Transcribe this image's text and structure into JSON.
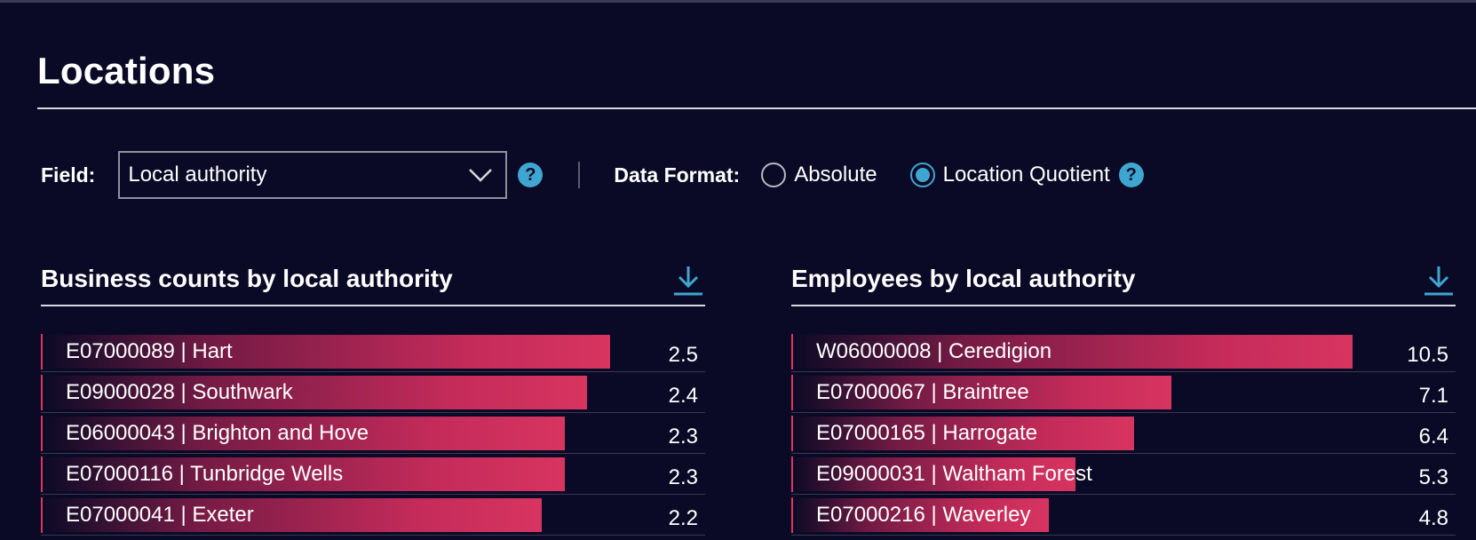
{
  "page": {
    "title": "Locations"
  },
  "controls": {
    "field_label": "Field:",
    "field_value": "Local authority",
    "help": "?",
    "format_label": "Data Format:",
    "options": [
      {
        "label": "Absolute",
        "selected": false
      },
      {
        "label": "Location Quotient",
        "selected": true
      }
    ]
  },
  "colors": {
    "background": "#0b0a26",
    "bar": "#d83460",
    "accent": "#3fa6d2"
  },
  "chart_data": [
    {
      "type": "bar",
      "orientation": "horizontal",
      "title": "Business counts by local authority",
      "categories": [
        "E07000089 | Hart",
        "E09000028 | Southwark",
        "E06000043 | Brighton and Hove",
        "E07000116 | Tunbridge Wells",
        "E07000041 | Exeter"
      ],
      "values": [
        2.5,
        2.4,
        2.3,
        2.3,
        2.2
      ],
      "value_labels": [
        "2.5",
        "2.4",
        "2.3",
        "2.3",
        "2.2"
      ],
      "xlim": [
        0,
        2.7
      ],
      "grid": false
    },
    {
      "type": "bar",
      "orientation": "horizontal",
      "title": "Employees by local authority",
      "categories": [
        "W06000008 | Ceredigion",
        "E07000067 | Braintree",
        "E07000165 | Harrogate",
        "E09000031 | Waltham Forest",
        "E07000216 | Waverley"
      ],
      "values": [
        10.5,
        7.1,
        6.4,
        5.3,
        4.8
      ],
      "value_labels": [
        "10.5",
        "7.1",
        "6.4",
        "5.3",
        "4.8"
      ],
      "xlim": [
        0,
        11.5
      ],
      "grid": false
    }
  ]
}
